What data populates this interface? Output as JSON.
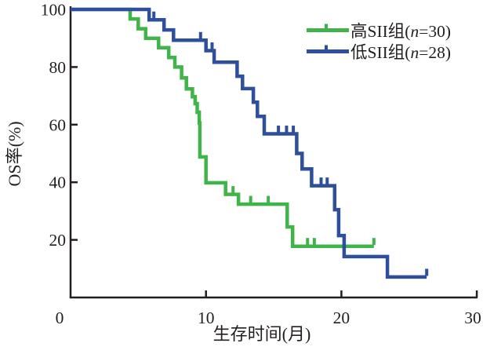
{
  "chart_data": {
    "type": "line",
    "subtype": "kaplan-meier-step",
    "title": "",
    "xlabel": "生存时间(月)",
    "ylabel": "OS率(%)",
    "xlim": [
      0,
      30
    ],
    "ylim": [
      0,
      100
    ],
    "xticks": [
      0,
      10,
      20,
      30
    ],
    "yticks": [
      20,
      40,
      60,
      80,
      100
    ],
    "grid": false,
    "legend_position": "top-right",
    "axis_color": "#231f20",
    "text_color": "#231f20",
    "series": [
      {
        "name": "高SII组(n=30)",
        "group": "high-sii",
        "n": 30,
        "color": "#3fb549",
        "points": [
          [
            0,
            100
          ],
          [
            4.4,
            96.7
          ],
          [
            5.0,
            93.3
          ],
          [
            5.55,
            90
          ],
          [
            6.5,
            86.7
          ],
          [
            7.25,
            83.3
          ],
          [
            7.7,
            80
          ],
          [
            8.2,
            76.2
          ],
          [
            8.55,
            72.4
          ],
          [
            9.0,
            69.7
          ],
          [
            9.2,
            67.3
          ],
          [
            9.35,
            64.3
          ],
          [
            9.5,
            60.6
          ],
          [
            9.55,
            48.8
          ],
          [
            10.0,
            39.8
          ],
          [
            11.45,
            35.8
          ],
          [
            12.4,
            32.4
          ],
          [
            16.0,
            24.5
          ],
          [
            16.4,
            17.8
          ],
          [
            22.4,
            17.8
          ]
        ],
        "censors": [
          [
            12.0,
            35.8
          ],
          [
            13.3,
            32.4
          ],
          [
            14.6,
            32.4
          ],
          [
            17.5,
            17.8
          ],
          [
            18.0,
            17.8
          ],
          [
            22.4,
            17.8
          ]
        ]
      },
      {
        "name": "低SII组(n=28)",
        "group": "low-sii",
        "n": 28,
        "color": "#2d4f9e",
        "points": [
          [
            0,
            100
          ],
          [
            5.8,
            96.4
          ],
          [
            6.9,
            92.9
          ],
          [
            7.6,
            89.3
          ],
          [
            10.0,
            85.7
          ],
          [
            10.6,
            81.7
          ],
          [
            12.3,
            76.8
          ],
          [
            12.7,
            72.5
          ],
          [
            13.5,
            67.8
          ],
          [
            13.8,
            62.9
          ],
          [
            14.3,
            56.8
          ],
          [
            16.7,
            50
          ],
          [
            17.1,
            44.6
          ],
          [
            17.8,
            38.8
          ],
          [
            19.5,
            30.5
          ],
          [
            19.8,
            21.5
          ],
          [
            20.2,
            14.2
          ],
          [
            23.4,
            7.1
          ],
          [
            26.3,
            7.1
          ]
        ],
        "censors": [
          [
            6.15,
            96.4
          ],
          [
            9.6,
            89.3
          ],
          [
            10.45,
            85.7
          ],
          [
            15.35,
            56.8
          ],
          [
            15.95,
            56.8
          ],
          [
            16.45,
            56.8
          ],
          [
            18.5,
            38.8
          ],
          [
            18.95,
            38.8
          ],
          [
            26.3,
            7.1
          ]
        ]
      }
    ]
  }
}
